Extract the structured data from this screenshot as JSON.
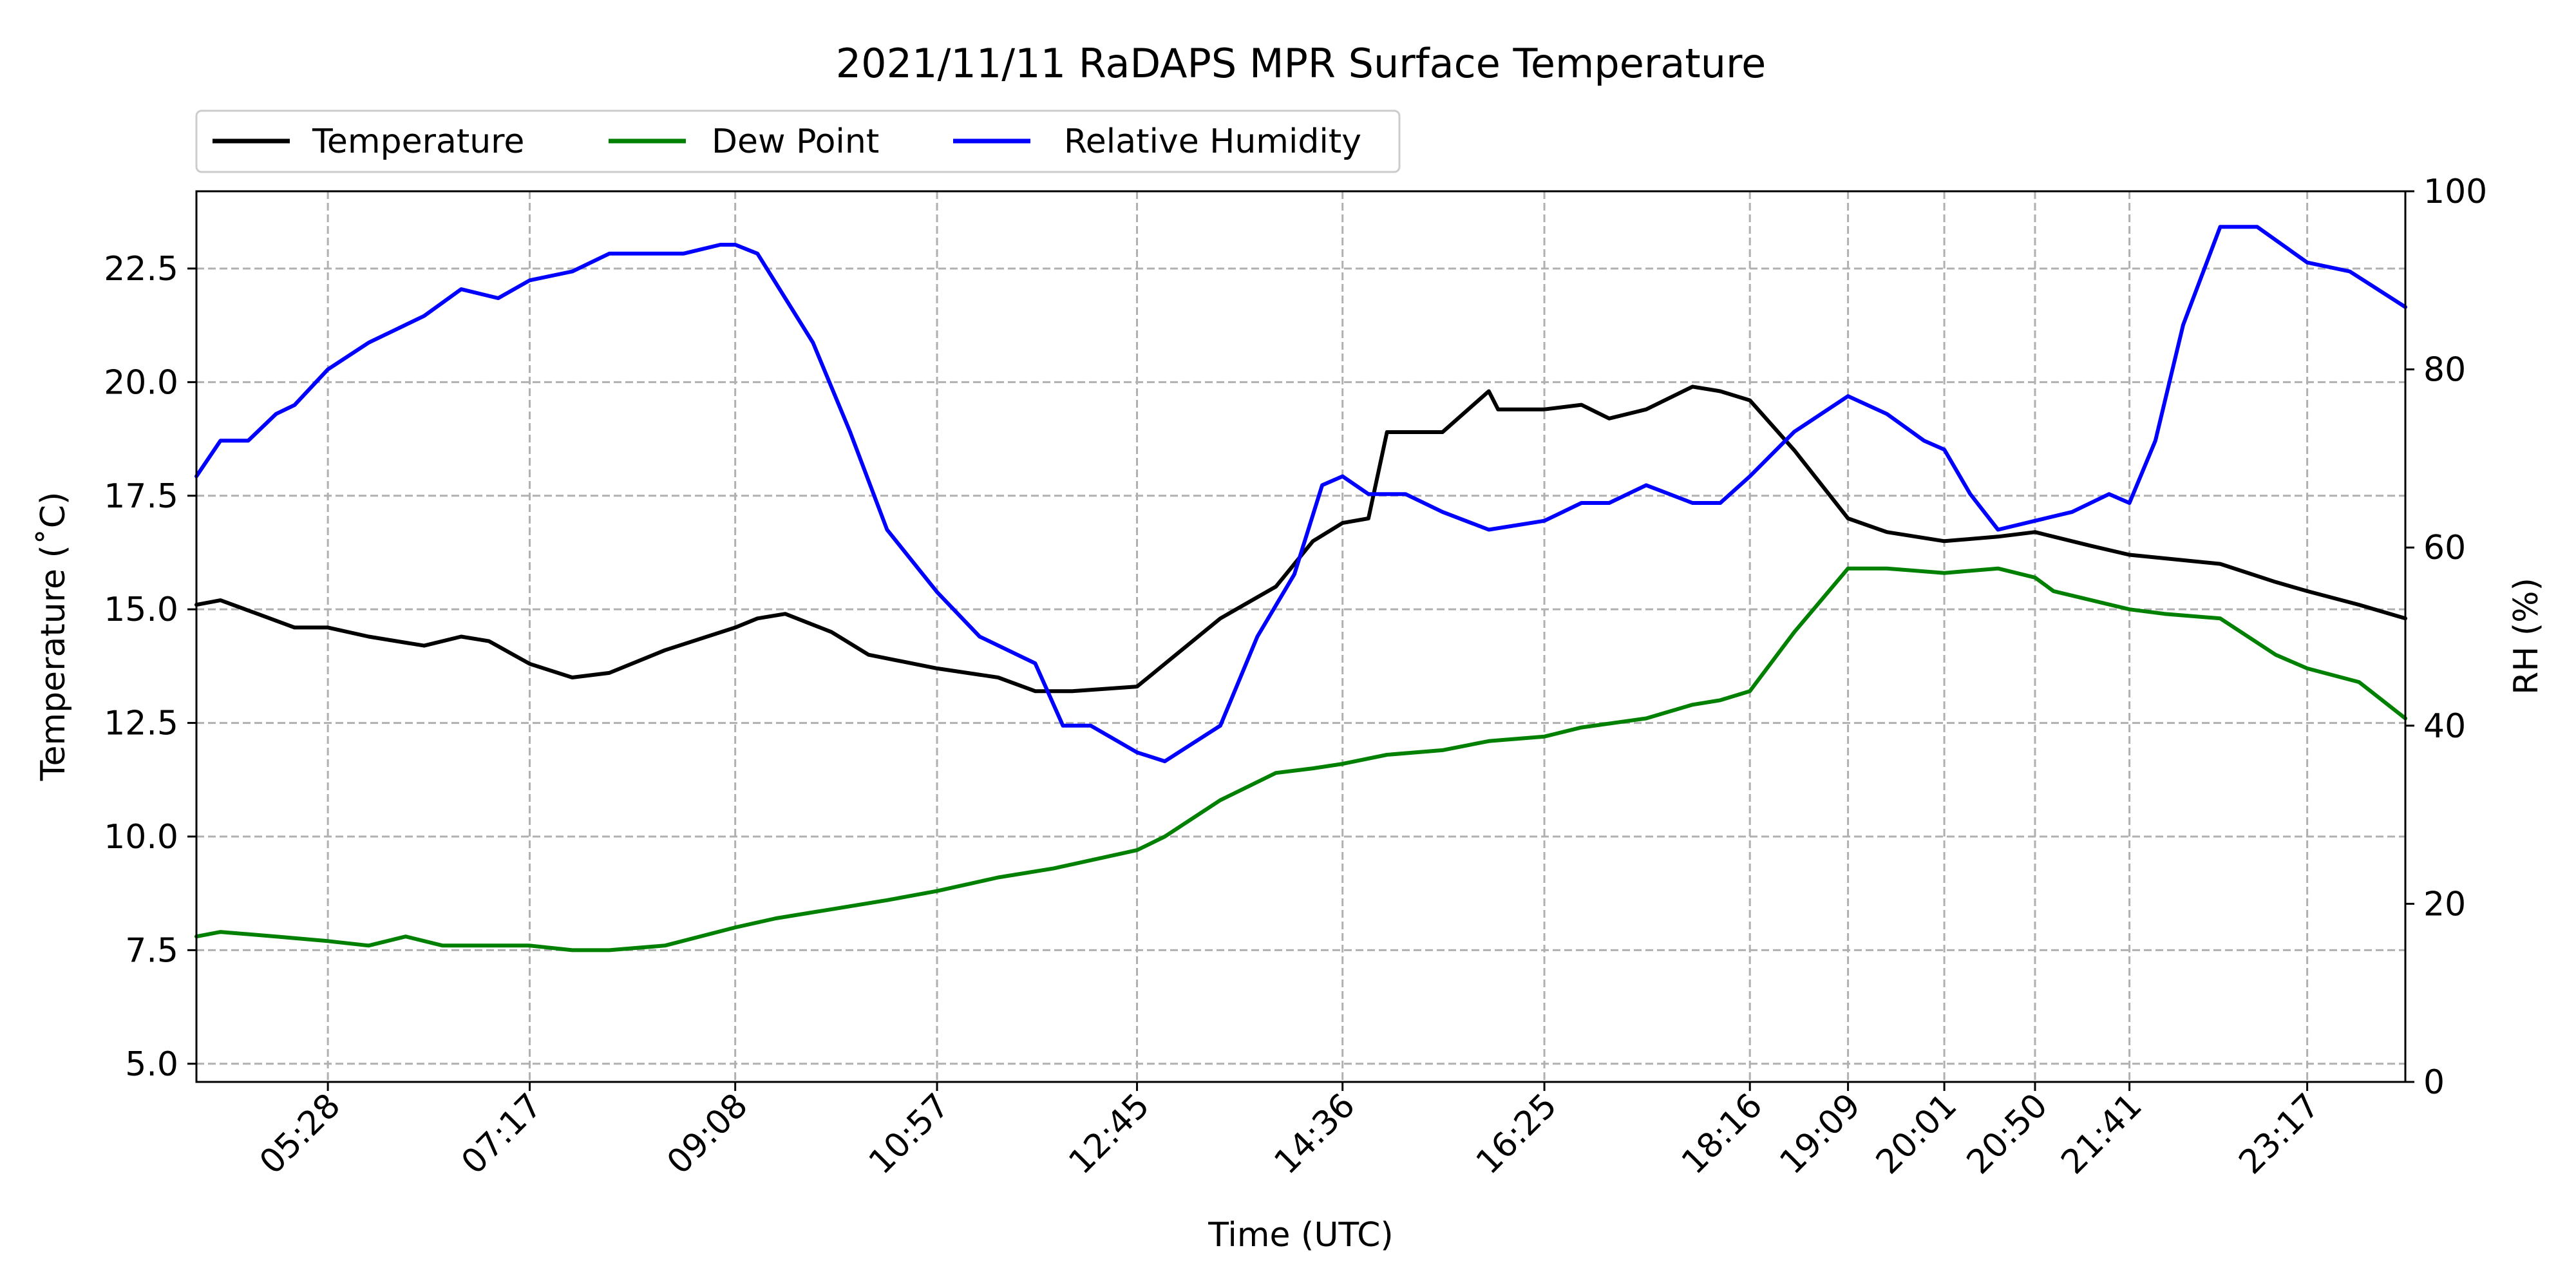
{
  "chart_data": {
    "type": "line",
    "title": "2021/11/11 RaDAPS MPR Surface Temperature",
    "xlabel": "Time (UTC)",
    "ylabel_left": "Temperature ($^\\circ$C)",
    "ylabel_left_display": "Temperature (˚C)",
    "ylabel_right": "RH (%)",
    "grid": true,
    "legend_placement": "top-left, above plot",
    "xlim": [
      "04:17",
      "24:10"
    ],
    "ylim_left": [
      4.6,
      24.2
    ],
    "ylim_right": [
      0,
      100
    ],
    "x_ticks": [
      "05:28",
      "07:17",
      "09:08",
      "10:57",
      "12:45",
      "14:36",
      "16:25",
      "18:16",
      "19:09",
      "20:01",
      "20:50",
      "21:41",
      "23:17"
    ],
    "y_ticks_left": [
      5.0,
      7.5,
      10.0,
      12.5,
      15.0,
      17.5,
      20.0,
      22.5
    ],
    "y_ticks_left_labels": [
      "5.0",
      "7.5",
      "10.0",
      "12.5",
      "15.0",
      "17.5",
      "20.0",
      "22.5"
    ],
    "y_ticks_right": [
      0,
      20,
      40,
      60,
      80,
      100
    ],
    "y_ticks_right_labels": [
      "0",
      "20",
      "40",
      "60",
      "80",
      "100"
    ],
    "series": [
      {
        "name": "Temperature",
        "color": "#000000",
        "axis": "left",
        "x": [
          "04:17",
          "04:30",
          "04:50",
          "05:10",
          "05:28",
          "05:50",
          "06:20",
          "06:40",
          "06:55",
          "07:17",
          "07:40",
          "08:00",
          "08:30",
          "09:08",
          "09:20",
          "09:35",
          "10:00",
          "10:20",
          "10:57",
          "11:30",
          "11:50",
          "12:10",
          "12:45",
          "13:00",
          "13:30",
          "14:00",
          "14:20",
          "14:36",
          "14:50",
          "15:00",
          "15:30",
          "15:55",
          "16:00",
          "16:25",
          "16:45",
          "17:00",
          "17:20",
          "17:45",
          "18:00",
          "18:16",
          "18:40",
          "19:09",
          "19:30",
          "20:01",
          "20:30",
          "20:50",
          "21:00",
          "21:20",
          "21:41",
          "22:30",
          "23:00",
          "23:17",
          "23:45",
          "24:10"
        ],
        "y": [
          15.1,
          15.2,
          14.9,
          14.6,
          14.6,
          14.4,
          14.2,
          14.4,
          14.3,
          13.8,
          13.5,
          13.6,
          14.1,
          14.6,
          14.8,
          14.9,
          14.5,
          14.0,
          13.7,
          13.5,
          13.2,
          13.2,
          13.3,
          13.8,
          14.8,
          15.5,
          16.5,
          16.9,
          17.0,
          18.9,
          18.9,
          19.8,
          19.4,
          19.4,
          19.5,
          19.2,
          19.4,
          19.9,
          19.8,
          19.6,
          18.5,
          17.0,
          16.7,
          16.5,
          16.6,
          16.7,
          16.6,
          16.4,
          16.2,
          16.0,
          15.6,
          15.4,
          15.1,
          14.8
        ]
      },
      {
        "name": "Dew Point",
        "color": "#008000",
        "axis": "left",
        "x": [
          "04:17",
          "04:30",
          "05:00",
          "05:28",
          "05:50",
          "06:10",
          "06:30",
          "07:00",
          "07:17",
          "07:40",
          "08:00",
          "08:30",
          "09:08",
          "09:30",
          "10:00",
          "10:30",
          "10:57",
          "11:30",
          "12:00",
          "12:45",
          "13:00",
          "13:30",
          "14:00",
          "14:20",
          "14:36",
          "15:00",
          "15:30",
          "15:55",
          "16:25",
          "16:45",
          "17:20",
          "17:45",
          "18:00",
          "18:16",
          "18:40",
          "19:09",
          "19:30",
          "20:01",
          "20:30",
          "20:50",
          "21:00",
          "21:41",
          "22:00",
          "22:30",
          "23:00",
          "23:17",
          "23:45",
          "24:10"
        ],
        "y": [
          7.8,
          7.9,
          7.8,
          7.7,
          7.6,
          7.8,
          7.6,
          7.6,
          7.6,
          7.5,
          7.5,
          7.6,
          8.0,
          8.2,
          8.4,
          8.6,
          8.8,
          9.1,
          9.3,
          9.7,
          10.0,
          10.8,
          11.4,
          11.5,
          11.6,
          11.8,
          11.9,
          12.1,
          12.2,
          12.4,
          12.6,
          12.9,
          13.0,
          13.2,
          14.5,
          15.9,
          15.9,
          15.8,
          15.9,
          15.7,
          15.4,
          15.0,
          14.9,
          14.8,
          14.0,
          13.7,
          13.4,
          12.6
        ]
      },
      {
        "name": "Relative Humidity",
        "color": "#0000ff",
        "axis": "right",
        "x": [
          "04:17",
          "04:30",
          "04:45",
          "05:00",
          "05:10",
          "05:28",
          "05:50",
          "06:20",
          "06:40",
          "07:00",
          "07:17",
          "07:40",
          "08:00",
          "08:20",
          "08:40",
          "09:00",
          "09:08",
          "09:20",
          "09:35",
          "09:50",
          "10:10",
          "10:30",
          "10:57",
          "11:20",
          "11:50",
          "12:05",
          "12:20",
          "12:45",
          "13:00",
          "13:30",
          "13:50",
          "14:10",
          "14:25",
          "14:36",
          "14:50",
          "15:10",
          "15:30",
          "15:55",
          "16:25",
          "16:45",
          "17:00",
          "17:20",
          "17:45",
          "18:00",
          "18:16",
          "18:40",
          "19:09",
          "19:30",
          "19:50",
          "20:01",
          "20:15",
          "20:30",
          "20:50",
          "21:10",
          "21:30",
          "21:41",
          "21:55",
          "22:10",
          "22:30",
          "22:50",
          "23:17",
          "23:40",
          "24:10"
        ],
        "y": [
          68,
          72,
          72,
          75,
          76,
          80,
          83,
          86,
          89,
          88,
          90,
          91,
          93,
          93,
          93,
          94,
          94,
          93,
          88,
          83,
          73,
          62,
          55,
          50,
          47,
          40,
          40,
          37,
          36,
          40,
          50,
          57,
          67,
          68,
          66,
          66,
          64,
          62,
          63,
          65,
          65,
          67,
          65,
          65,
          68,
          73,
          77,
          75,
          72,
          71,
          66,
          62,
          63,
          64,
          66,
          65,
          72,
          85,
          96,
          96,
          92,
          91,
          87
        ]
      }
    ]
  }
}
